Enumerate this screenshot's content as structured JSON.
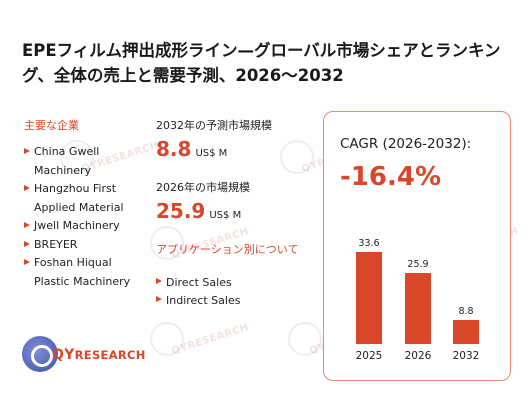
{
  "title": "EPEフィルム押出成形ライン—グローバル市場シェアとランキング、全体の売上と需要予測、2026～2032",
  "companies": {
    "label": "主要な企業",
    "items": [
      "China Gwell Machinery",
      "Hangzhou First Applied Material",
      "Jwell Machinery",
      "BREYER",
      "Foshan Hiqual Plastic Machinery"
    ]
  },
  "stats": {
    "y2032_label": "2032年の予測市場規模",
    "y2032_value": "8.8",
    "y2032_unit": "US$ M",
    "y2026_label": "2026年の市場規模",
    "y2026_value": "25.9",
    "y2026_unit": "US$ M"
  },
  "applications": {
    "label": "アプリケーション別について",
    "items": [
      "Direct Sales",
      "Indirect Sales"
    ]
  },
  "cagr": {
    "label": "CAGR (2026-2032):",
    "value": "-16.4%"
  },
  "chart_data": {
    "type": "bar",
    "categories": [
      "2025",
      "2026",
      "2032"
    ],
    "values": [
      33.6,
      25.9,
      8.8
    ],
    "value_labels": [
      "33.6",
      "25.9",
      "8.8"
    ],
    "ylim": [
      0,
      40
    ],
    "bar_color": "#d9472b"
  },
  "logo": {
    "qy": "QY",
    "rest": "RESEARCH"
  },
  "watermark": "QYRESEARCH",
  "colors": {
    "accent": "#d9472b",
    "card_border": "#e58b74"
  }
}
